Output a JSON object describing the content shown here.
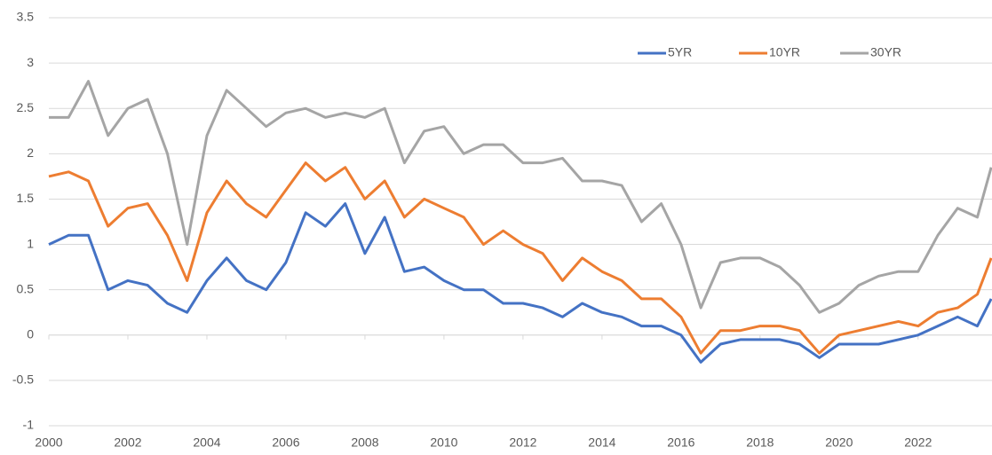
{
  "chart_data": {
    "type": "line",
    "x": [
      2000,
      2000.5,
      2001,
      2001.5,
      2002,
      2002.5,
      2003,
      2003.5,
      2004,
      2004.5,
      2005,
      2005.5,
      2006,
      2006.5,
      2007,
      2007.5,
      2008,
      2008.5,
      2009,
      2009.5,
      2010,
      2010.5,
      2011,
      2011.5,
      2012,
      2012.5,
      2013,
      2013.5,
      2014,
      2014.5,
      2015,
      2015.5,
      2016,
      2016.5,
      2017,
      2017.5,
      2018,
      2018.5,
      2019,
      2019.5,
      2020,
      2020.5,
      2021,
      2021.5,
      2022,
      2022.5,
      2023,
      2023.5,
      2023.85
    ],
    "series": [
      {
        "name": "5YR",
        "color": "#4472c4",
        "values": [
          1.0,
          1.1,
          1.1,
          0.5,
          0.6,
          0.55,
          0.35,
          0.25,
          0.6,
          0.85,
          0.6,
          0.5,
          0.8,
          1.35,
          1.2,
          1.45,
          0.9,
          1.3,
          0.7,
          0.75,
          0.6,
          0.5,
          0.5,
          0.35,
          0.35,
          0.3,
          0.2,
          0.35,
          0.25,
          0.2,
          0.1,
          0.1,
          0.0,
          -0.3,
          -0.1,
          -0.05,
          -0.05,
          -0.05,
          -0.1,
          -0.25,
          -0.1,
          -0.1,
          -0.1,
          -0.05,
          0.0,
          0.1,
          0.2,
          0.1,
          0.4
        ]
      },
      {
        "name": "10YR",
        "color": "#ed7d31",
        "values": [
          1.75,
          1.8,
          1.7,
          1.2,
          1.4,
          1.45,
          1.1,
          0.6,
          1.35,
          1.7,
          1.45,
          1.3,
          1.6,
          1.9,
          1.7,
          1.85,
          1.5,
          1.7,
          1.3,
          1.5,
          1.4,
          1.3,
          1.0,
          1.15,
          1.0,
          0.9,
          0.6,
          0.85,
          0.7,
          0.6,
          0.4,
          0.4,
          0.2,
          -0.2,
          0.05,
          0.05,
          0.1,
          0.1,
          0.05,
          -0.2,
          0.0,
          0.05,
          0.1,
          0.15,
          0.1,
          0.25,
          0.3,
          0.45,
          0.85
        ]
      },
      {
        "name": "30YR",
        "color": "#a5a5a5",
        "values": [
          2.4,
          2.4,
          2.8,
          2.2,
          2.5,
          2.6,
          2.0,
          1.0,
          2.2,
          2.7,
          2.5,
          2.3,
          2.45,
          2.5,
          2.4,
          2.45,
          2.4,
          2.5,
          1.9,
          2.25,
          2.3,
          2.0,
          2.1,
          2.1,
          1.9,
          1.9,
          1.95,
          1.7,
          1.7,
          1.65,
          1.25,
          1.45,
          1.0,
          0.3,
          0.8,
          0.85,
          0.85,
          0.75,
          0.55,
          0.25,
          0.35,
          0.55,
          0.65,
          0.7,
          0.7,
          1.1,
          1.4,
          1.3,
          1.85
        ]
      }
    ],
    "xlim": [
      2000,
      2023.87
    ],
    "xticks": [
      2000,
      2002,
      2004,
      2006,
      2008,
      2010,
      2012,
      2014,
      2016,
      2018,
      2020,
      2022
    ],
    "ylim": [
      -1,
      3.5
    ],
    "yticks": [
      -1,
      -0.5,
      0,
      0.5,
      1,
      1.5,
      2,
      2.5,
      3,
      3.5
    ],
    "grid": true,
    "legend": "top-right"
  }
}
